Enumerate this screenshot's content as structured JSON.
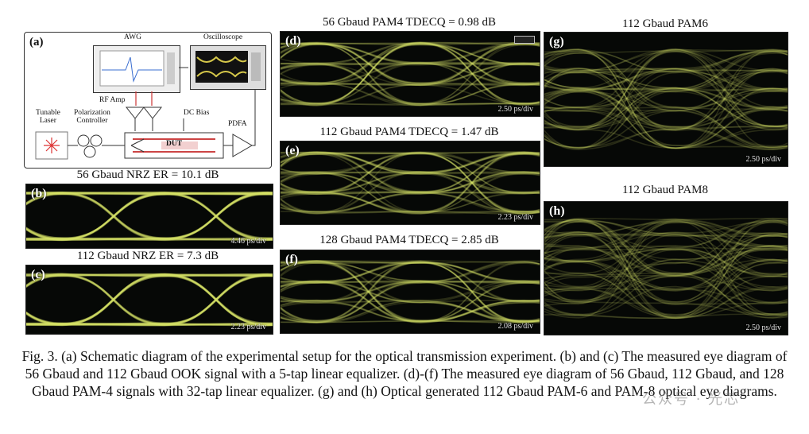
{
  "panels": {
    "a": {
      "label": "(a)",
      "awg": "AWG",
      "oscilloscope": "Oscilloscope",
      "rf_amp": "RF Amp",
      "dc_bias": "DC Bias",
      "tunable_laser": "Tunable\nLaser",
      "polarization_controller": "Polarization\nController",
      "dut": "DUT",
      "pdfa": "PDFA"
    },
    "b": {
      "label": "(b)",
      "title": "56 Gbaud NRZ ER = 10.1 dB",
      "scale": "4.46 ps/div",
      "format": "NRZ"
    },
    "c": {
      "label": "(c)",
      "title": "112 Gbaud NRZ ER = 7.3 dB",
      "scale": "2.23 ps/div",
      "format": "NRZ"
    },
    "d": {
      "label": "(d)",
      "title": "56 Gbaud PAM4 TDECQ = 0.98 dB",
      "scale": "2.50 ps/div",
      "format": "PAM4"
    },
    "e": {
      "label": "(e)",
      "title": "112 Gbaud PAM4 TDECQ = 1.47 dB",
      "scale": "2.23 ps/div",
      "format": "PAM4"
    },
    "f": {
      "label": "(f)",
      "title": "128 Gbaud PAM4 TDECQ = 2.85 dB",
      "scale": "2.08 ps/div",
      "format": "PAM4"
    },
    "g": {
      "label": "(g)",
      "title": "112 Gbaud PAM6",
      "scale": "2.50 ps/div",
      "format": "PAM6"
    },
    "h": {
      "label": "(h)",
      "title": "112 Gbaud PAM8",
      "scale": "2.50 ps/div",
      "format": "PAM8"
    }
  },
  "caption": "Fig. 3. (a) Schematic diagram of the experimental setup for the optical transmission experiment. (b) and (c) The measured eye diagram of 56 Gbaud and 112 Gbaud OOK signal with a 5-tap linear equalizer.  (d)-(f) The measured eye diagram of 56 Gbaud, 112 Gbaud, and 128 Gbaud PAM-4 signals with 32-tap linear equalizer. (g) and (h) Optical generated 112 Gbaud PAM-6 and PAM-8 optical eye diagrams.",
  "watermark": "公众号 · 光芯",
  "colors": {
    "trace": "#d8e86a",
    "background": "#060806"
  }
}
